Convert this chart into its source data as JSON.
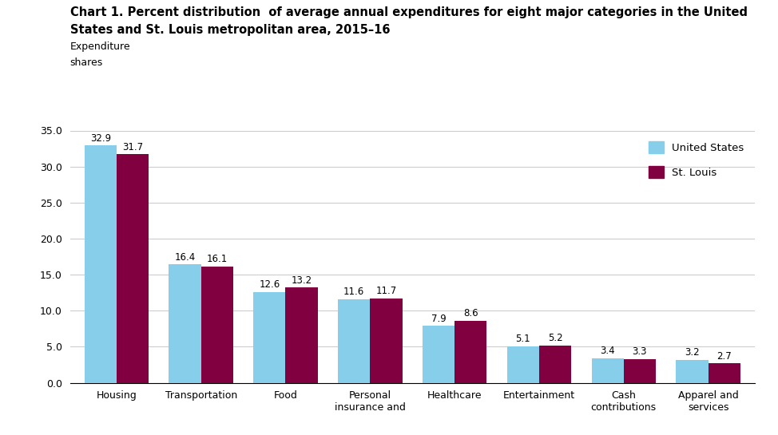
{
  "title_line1": "Chart 1. Percent distribution  of average annual expenditures for eight major categories in the United",
  "title_line2": "States and St. Louis metropolitan area, 2015–16",
  "ylabel_line1": "Expenditure",
  "ylabel_line2": "shares",
  "categories": [
    "Housing",
    "Transportation",
    "Food",
    "Personal\ninsurance and",
    "Healthcare",
    "Entertainment",
    "Cash\ncontributions",
    "Apparel and\nservices"
  ],
  "us_values": [
    32.9,
    16.4,
    12.6,
    11.6,
    7.9,
    5.1,
    3.4,
    3.2
  ],
  "stl_values": [
    31.7,
    16.1,
    13.2,
    11.7,
    8.6,
    5.2,
    3.3,
    2.7
  ],
  "us_color": "#87CEEB",
  "stl_color": "#800040",
  "legend_us": "United States",
  "legend_stl": "St. Louis",
  "ylim": [
    0,
    35
  ],
  "yticks": [
    0.0,
    5.0,
    10.0,
    15.0,
    20.0,
    25.0,
    30.0,
    35.0
  ],
  "background_color": "#ffffff",
  "grid_color": "#cccccc",
  "bar_width": 0.38,
  "title_fontsize": 10.5,
  "tick_fontsize": 9,
  "label_fontsize": 8.5,
  "legend_fontsize": 9.5
}
